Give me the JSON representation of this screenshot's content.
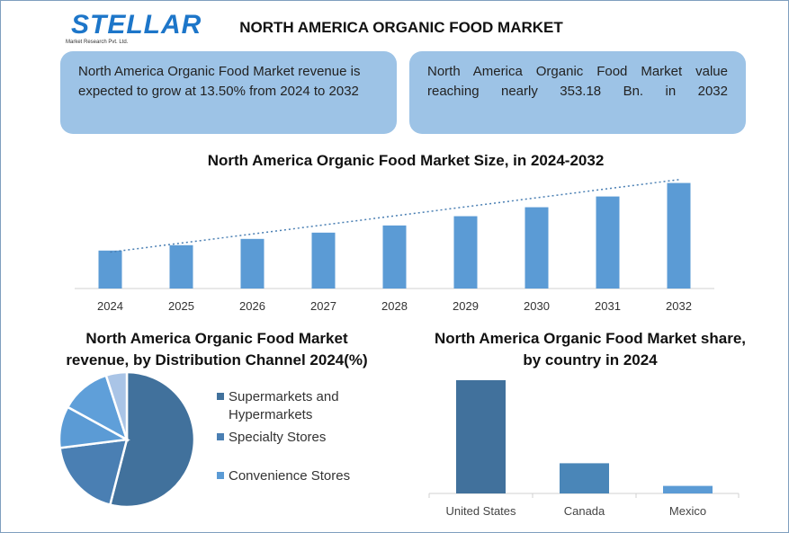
{
  "logo": {
    "text": "STELLAR",
    "subtext": "Market Research Pvt. Ltd."
  },
  "header": {
    "title": "NORTH AMERICA ORGANIC FOOD MARKET"
  },
  "cards": [
    {
      "text": "North America Organic Food Market revenue is expected to grow at 13.50% from 2024 to 2032"
    },
    {
      "text": "North America Organic Food Market value reaching nearly 353.18 Bn. in 2032"
    }
  ],
  "chart_data": [
    {
      "type": "bar",
      "title": "North America Organic Food Market Size, in 2024-2032",
      "categories": [
        "2024",
        "2025",
        "2026",
        "2027",
        "2028",
        "2029",
        "2030",
        "2031",
        "2032"
      ],
      "values": [
        127,
        145,
        166,
        187,
        211,
        242,
        272,
        308,
        353.18
      ],
      "trendline": "linear dotted",
      "color": "#5b9bd5",
      "ylim": [
        0,
        400
      ],
      "grid": false
    },
    {
      "type": "pie",
      "title": "North America Organic Food Market revenue, by Distribution Channel 2024(%)",
      "categories": [
        "Supermarkets and Hypermarkets",
        "Specialty Stores",
        "Convenience Stores",
        "",
        ""
      ],
      "legend_visible": [
        "Supermarkets and Hypermarkets",
        "Specialty Stores",
        "Convenience Stores"
      ],
      "values": [
        54,
        19,
        10,
        12,
        5
      ],
      "colors": [
        "#41719c",
        "#4a7fb3",
        "#5b9bd5",
        "#5f9fd9",
        "#a9c4e6"
      ],
      "legend": "right"
    },
    {
      "type": "bar",
      "title": "North America Organic Food Market share, by country in 2024",
      "categories": [
        "United States",
        "Canada",
        "Mexico"
      ],
      "values": [
        75,
        20,
        5
      ],
      "colors": [
        "#41719c",
        "#4a86b8",
        "#5b9bd5"
      ],
      "grid": false
    }
  ]
}
